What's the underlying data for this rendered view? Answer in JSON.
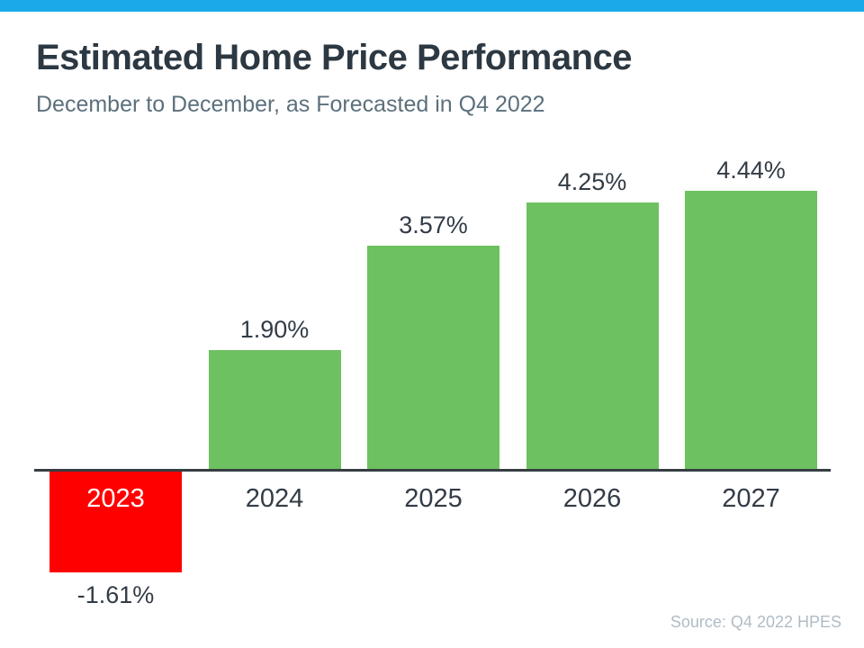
{
  "page": {
    "title": "Estimated Home Price Performance",
    "subtitle": "December to December, as Forecasted in Q4 2022",
    "source": "Source: Q4 2022 HPES"
  },
  "colors": {
    "accent_bar": "#1BAAE9",
    "positive_bar": "#6EC160",
    "negative_bar": "#FF0000",
    "title_text": "#2C3842",
    "subtitle_text": "#5C707C",
    "label_text": "#333C46",
    "in_bar_label_text": "#FFFFFF",
    "source_text": "#B0BCC4",
    "axis_line": "#363E43"
  },
  "chart_data": {
    "type": "bar",
    "title": "Estimated Home Price Performance",
    "subtitle": "December to December, as Forecasted in Q4 2022",
    "categories": [
      "2023",
      "2024",
      "2025",
      "2026",
      "2027"
    ],
    "values": [
      -1.61,
      1.9,
      3.57,
      4.25,
      4.44
    ],
    "value_labels": [
      "-1.61%",
      "1.90%",
      "3.57%",
      "4.25%",
      "4.44%"
    ],
    "xlabel": "",
    "ylabel": "",
    "ylim": [
      -2,
      5
    ],
    "grid": false,
    "legend": false,
    "source": "Source: Q4 2022 HPES",
    "notes": "Negative 2023 bar drawn red below baseline with year label inside bar; positive bars green above baseline with value labels on top"
  }
}
